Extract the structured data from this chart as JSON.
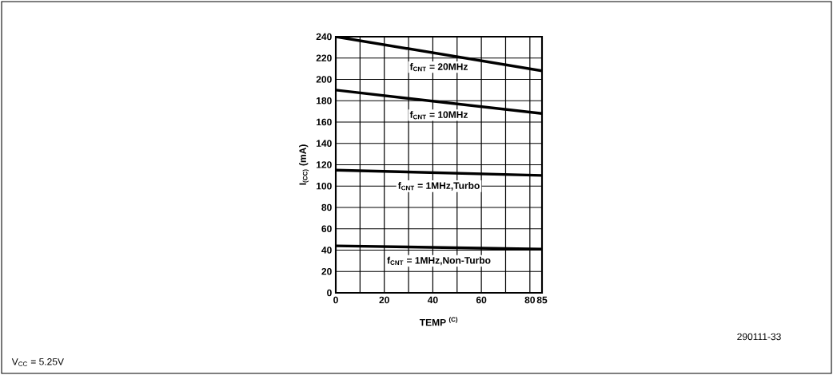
{
  "chart_data": {
    "type": "line",
    "xlabel": "TEMP $^{(C)}$",
    "ylabel": "I$_{(CC)}$ (mA)",
    "x": [
      0,
      85
    ],
    "series": [
      {
        "name": "f$_{CNT}$ = 20MHz",
        "color": "#000000",
        "values": [
          240,
          208
        ]
      },
      {
        "name": "f$_{CNT}$ = 10MHz",
        "color": "#000000",
        "values": [
          190,
          168
        ]
      },
      {
        "name": "f$_{CNT}$ = 1MHz,Turbo",
        "color": "#000000",
        "values": [
          115,
          110
        ]
      },
      {
        "name": "f$_{CNT}$ = 1MHz,Non-Turbo",
        "color": "#000000",
        "values": [
          44,
          41
        ]
      }
    ],
    "xlim": [
      0,
      85
    ],
    "ylim": [
      0,
      240
    ],
    "xticks": [
      0,
      {
        "value": 10,
        "label": null
      },
      20,
      {
        "value": 30,
        "label": null
      },
      40,
      {
        "value": 50,
        "label": null
      },
      60,
      {
        "value": 70,
        "label": null
      },
      80,
      85
    ],
    "yticks": [
      0,
      20,
      40,
      60,
      80,
      100,
      120,
      140,
      160,
      180,
      200,
      220,
      240
    ],
    "grid": true,
    "annotations": [
      "V$_{CC}$ = 5.25V",
      "290111-33"
    ]
  }
}
